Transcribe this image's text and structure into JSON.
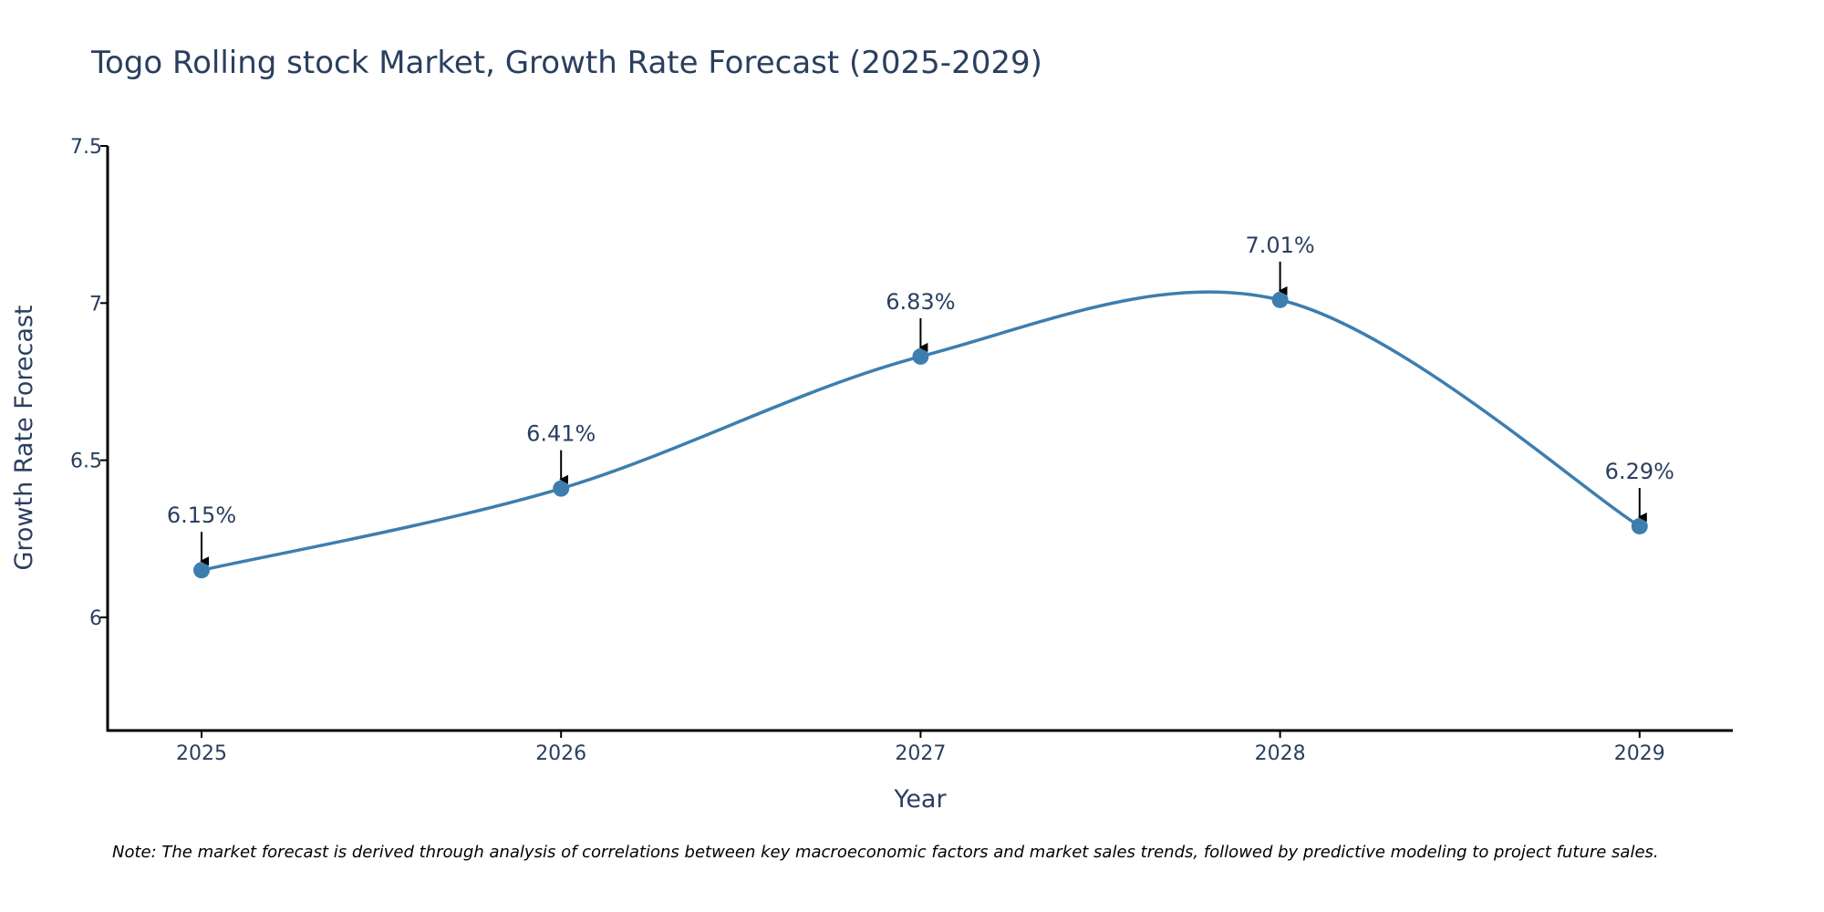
{
  "chart_data": {
    "type": "line",
    "title": "Togo Rolling stock Market, Growth Rate Forecast (2025-2029)",
    "xlabel": "Year",
    "ylabel": "Growth Rate Forecast",
    "categories": [
      "2025",
      "2026",
      "2027",
      "2028",
      "2029"
    ],
    "series": [
      {
        "name": "Growth Rate Forecast",
        "values": [
          6.15,
          6.41,
          6.83,
          7.01,
          6.29
        ],
        "labels": [
          "6.15%",
          "6.41%",
          "6.83%",
          "7.01%",
          "6.29%"
        ]
      }
    ],
    "ylim": [
      5.64,
      7.5
    ],
    "yticks": [
      {
        "value": 6,
        "label": "6"
      },
      {
        "value": 6.5,
        "label": "6.5"
      },
      {
        "value": 7,
        "label": "7"
      },
      {
        "value": 7.5,
        "label": "7.5"
      }
    ],
    "grid": false,
    "line_color": "#3d7eae",
    "annotation_arrow_color": "#000000",
    "note": "Note: The market forecast is derived through analysis of correlations between key macroeconomic factors and market sales trends, followed by predictive modeling to project future sales."
  }
}
